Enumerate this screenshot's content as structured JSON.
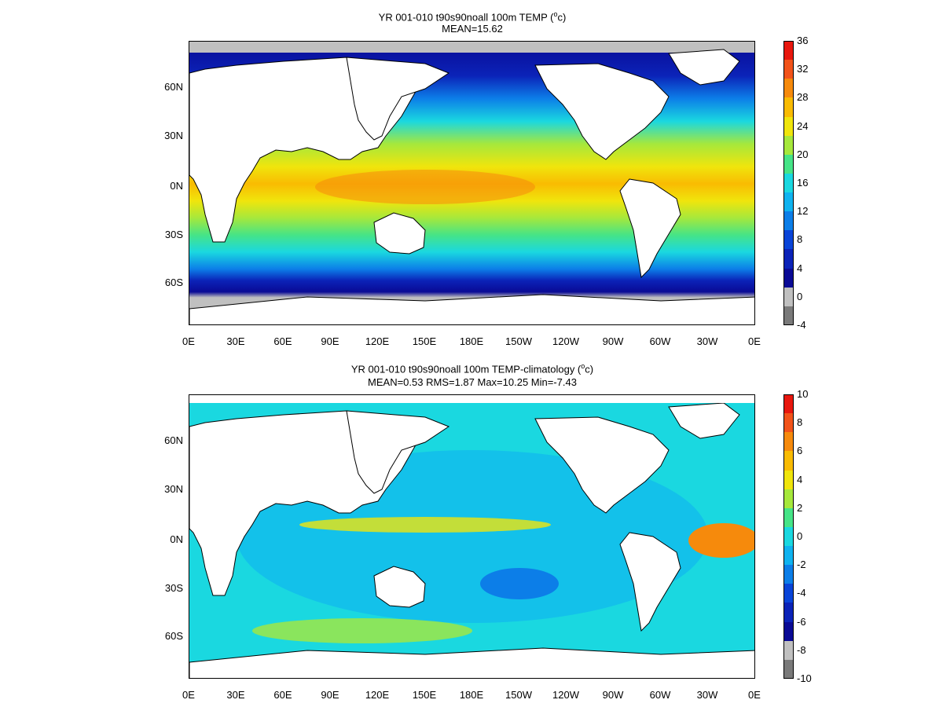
{
  "panels": [
    {
      "title_main": "YR 001-010 t90s90noall 100m TEMP (",
      "title_sup": "o",
      "title_end": "c)",
      "subtitle": "MEAN=15.62",
      "colorbar_labels": [
        "36",
        "32",
        "28",
        "24",
        "20",
        "16",
        "12",
        "8",
        "4",
        "0",
        "-4"
      ],
      "colorbar_colors": [
        "#e8170e",
        "#f2531a",
        "#f68a0c",
        "#f9bb02",
        "#f0e50c",
        "#a6e83c",
        "#46e487",
        "#1ad8e0",
        "#0fb3f0",
        "#0c7ee8",
        "#0944d8",
        "#0b23b8",
        "#0a0a95",
        "#c0c0c0",
        "#7a7a7a"
      ]
    },
    {
      "title_main": "YR 001-010 t90s90noall 100m TEMP-climatology (",
      "title_sup": "o",
      "title_end": "c)",
      "subtitle": "MEAN=0.53   RMS=1.87   Max=10.25   Min=-7.43",
      "colorbar_labels": [
        "10",
        "8",
        "6",
        "4",
        "2",
        "0",
        "-2",
        "-4",
        "-6",
        "-8",
        "-10"
      ],
      "colorbar_colors": [
        "#e8170e",
        "#f2531a",
        "#f68a0c",
        "#f9bb02",
        "#f0e50c",
        "#a6e83c",
        "#46e487",
        "#1ad8e0",
        "#0fb3f0",
        "#0c7ee8",
        "#0944d8",
        "#0b23b8",
        "#0a0a95",
        "#c0c0c0",
        "#7a7a7a"
      ]
    }
  ],
  "lat_labels": [
    "60N",
    "30N",
    "0N",
    "30S",
    "60S"
  ],
  "lon_labels": [
    "0E",
    "30E",
    "60E",
    "90E",
    "120E",
    "150E",
    "180E",
    "150W",
    "120W",
    "90W",
    "60W",
    "30W",
    "0E"
  ],
  "colors": {
    "land": "#ffffff",
    "ice": "#c0c0c0",
    "coast": "#000000"
  }
}
